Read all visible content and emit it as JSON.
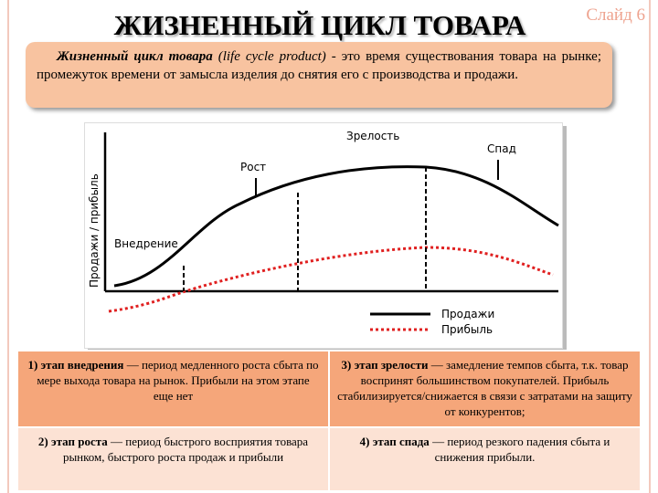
{
  "header": {
    "title": "ЖИЗНЕННЫЙ ЦИКЛ ТОВАРА",
    "slide_number": "Слайд 6"
  },
  "definition": {
    "term": "Жизненный цикл товара",
    "term_en": "(life cycle product)",
    "text": "- это время существования товара на рынке; промежуток времени от замысла изделия до снятия его с производства и продажи."
  },
  "figure": {
    "y_axis_label": "Продажи / прибыль",
    "stages": [
      "Внедрение",
      "Рост",
      "Зрелость",
      "Спад"
    ],
    "legend": [
      "Продажи",
      "Прибыль"
    ]
  },
  "table": {
    "rows": [
      [
        {
          "term": "1) этап внедрения",
          "text": "— период медленного роста сбыта по мере выхода товара на рынок. Прибыли на этом этапе еще нет"
        },
        {
          "term": "3) этап зрелости",
          "text": "— замедление темпов сбыта, т.к. товар воспринят большинством покупателей. Прибыль стабилизируется/снижается в связи с затратами на защиту от конкурентов;"
        }
      ],
      [
        {
          "term": "2) этап роста",
          "text": "— период быстрого восприятия товара рынком, быстрого роста продаж и прибыли"
        },
        {
          "term": "4) этап спада",
          "text": "— период резкого падения сбыта и снижения прибыли."
        }
      ]
    ]
  }
}
